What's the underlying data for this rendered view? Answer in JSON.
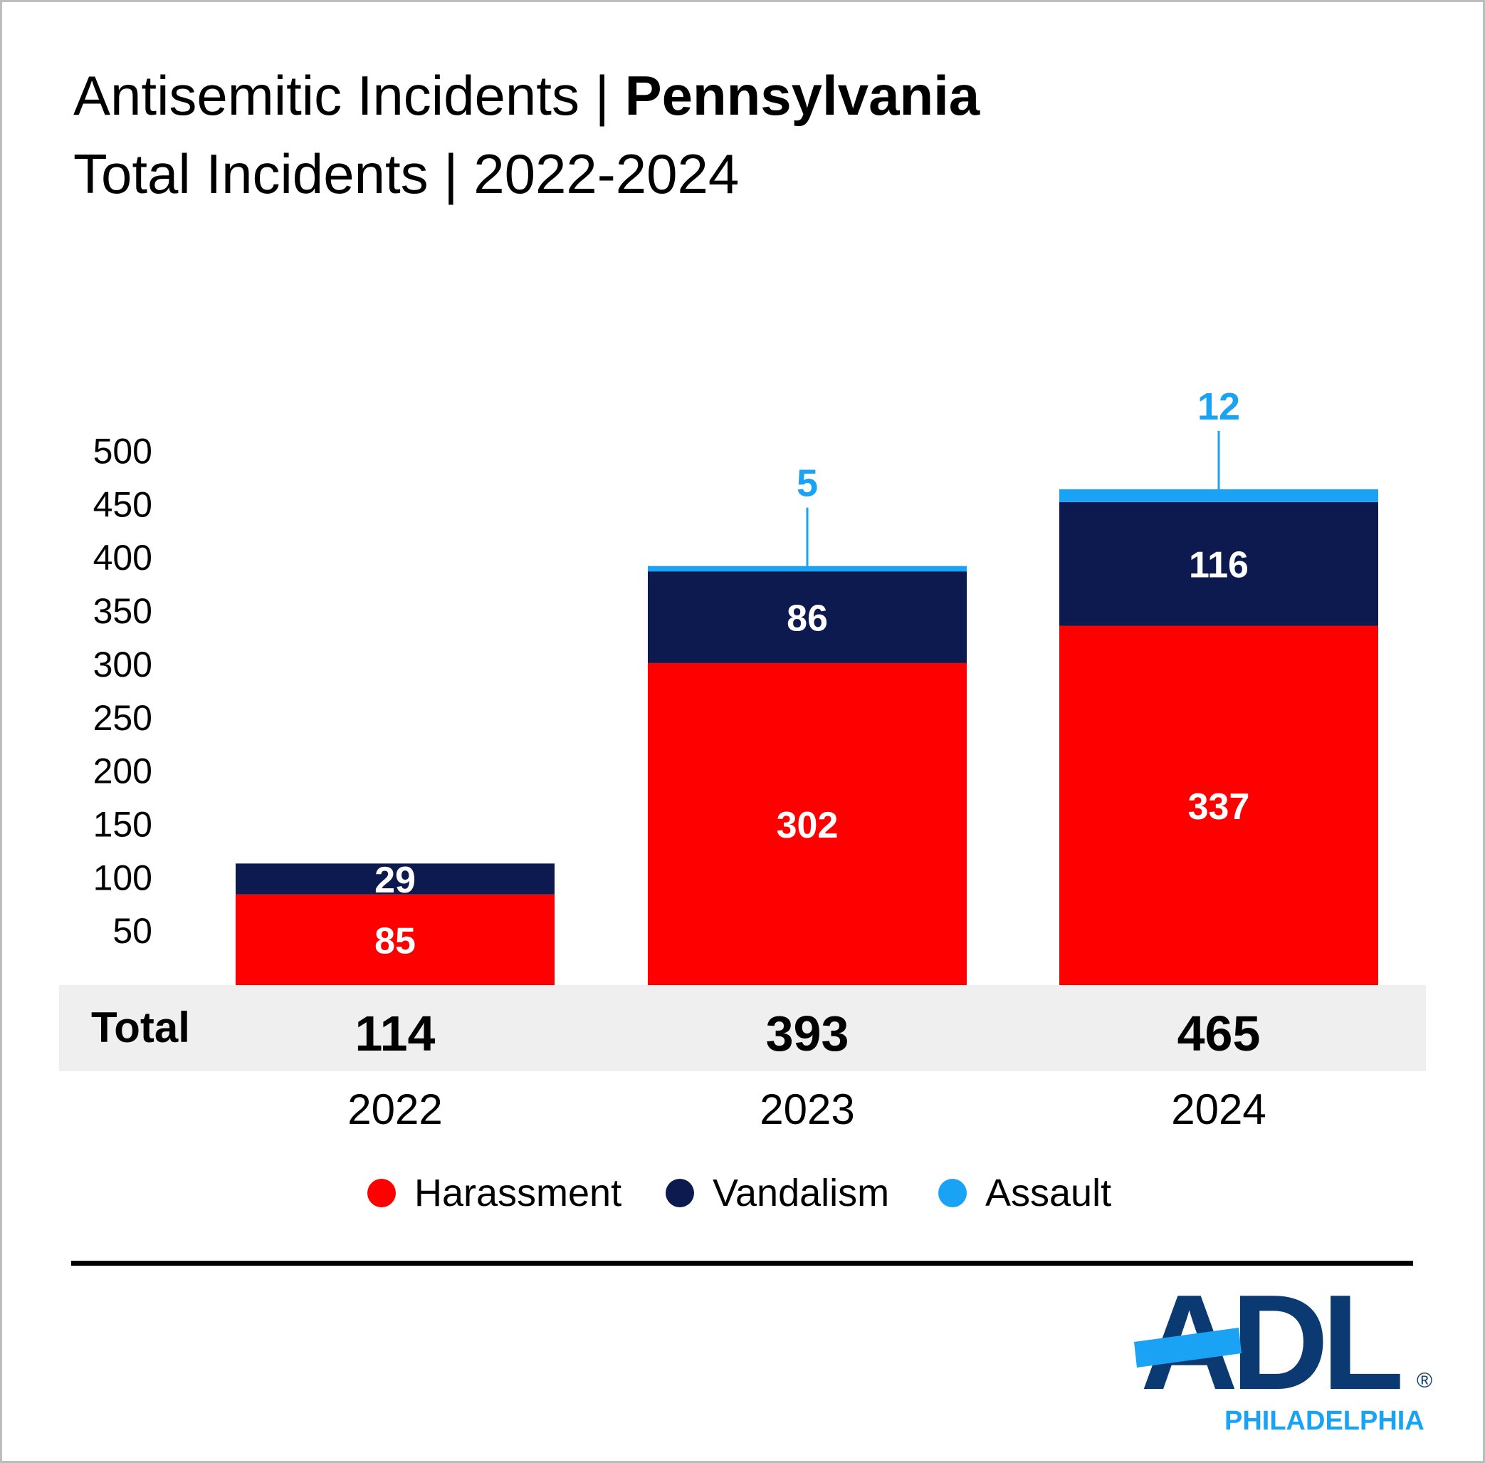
{
  "title": {
    "prefix": "Antisemitic Incidents | ",
    "state": "Pennsylvania",
    "subtitle": "Total Incidents | 2022-2024"
  },
  "chart_data": {
    "type": "bar",
    "stacked": true,
    "title": "Antisemitic Incidents | Pennsylvania",
    "subtitle": "Total Incidents | 2022-2024",
    "categories": [
      "2022",
      "2023",
      "2024"
    ],
    "series": [
      {
        "name": "Harassment",
        "color": "#ff0000",
        "values": [
          85,
          302,
          337
        ]
      },
      {
        "name": "Vandalism",
        "color": "#0d1a4f",
        "values": [
          29,
          86,
          116
        ]
      },
      {
        "name": "Assault",
        "color": "#1aa3f5",
        "values": [
          0,
          5,
          12
        ]
      }
    ],
    "totals_label": "Total",
    "totals": [
      114,
      393,
      465
    ],
    "yticks": [
      50,
      100,
      150,
      200,
      250,
      300,
      350,
      400,
      450,
      500
    ],
    "ylim": [
      0,
      500
    ],
    "grid": false,
    "legend": "bottom-center"
  },
  "logo": {
    "text": "ADL",
    "registered": "®",
    "city": "PHILADELPHIA",
    "color": "#0b3a73",
    "accent": "#1aa3f5"
  }
}
